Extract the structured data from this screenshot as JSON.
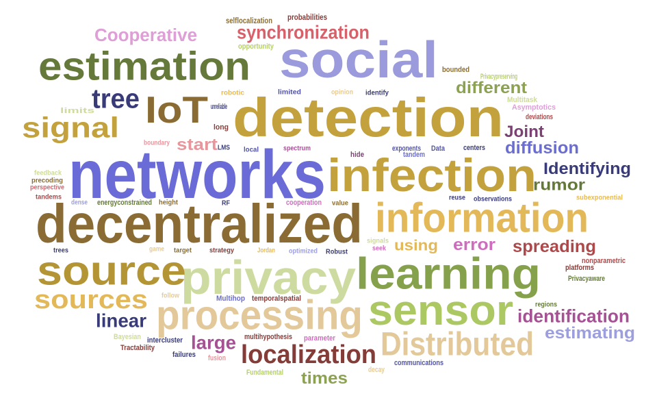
{
  "words": [
    {
      "text": "networks",
      "color": "#6a6bd6"
    },
    {
      "text": "detection",
      "color": "#c3a13c"
    },
    {
      "text": "decentralized",
      "color": "#8a6b33"
    },
    {
      "text": "privacy",
      "color": "#cddba0"
    },
    {
      "text": "social",
      "color": "#9a9adc"
    },
    {
      "text": "estimation",
      "color": "#657a3a"
    },
    {
      "text": "learning",
      "color": "#85a14c"
    },
    {
      "text": "source",
      "color": "#b39536"
    },
    {
      "text": "processing",
      "color": "#e3c89a"
    },
    {
      "text": "infection",
      "color": "#c3a13c"
    },
    {
      "text": "information",
      "color": "#e3b858"
    },
    {
      "text": "sensor",
      "color": "#acc863"
    },
    {
      "text": "IoT",
      "color": "#8a6b33"
    },
    {
      "text": "signal",
      "color": "#c3a13c"
    },
    {
      "text": "Distributed",
      "color": "#e3c89a"
    },
    {
      "text": "localization",
      "color": "#843c39"
    },
    {
      "text": "sources",
      "color": "#e3b858"
    },
    {
      "text": "synchronization",
      "color": "#d6616b"
    },
    {
      "text": "Cooperative",
      "color": "#de9ed6"
    },
    {
      "text": "tree",
      "color": "#393b79"
    },
    {
      "text": "spreading",
      "color": "#ad494a"
    },
    {
      "text": "different",
      "color": "#8ca252"
    },
    {
      "text": "diffusion",
      "color": "#6b6ecf"
    },
    {
      "text": "Identifying",
      "color": "#393b79"
    },
    {
      "text": "identification",
      "color": "#a55194"
    },
    {
      "text": "estimating",
      "color": "#9c9ede"
    },
    {
      "text": "linear",
      "color": "#393b79"
    },
    {
      "text": "rumor",
      "color": "#637939"
    },
    {
      "text": "Joint",
      "color": "#7b4173"
    },
    {
      "text": "start",
      "color": "#e7969c"
    },
    {
      "text": "error",
      "color": "#ce6dbd"
    },
    {
      "text": "using",
      "color": "#e3b858"
    },
    {
      "text": "large",
      "color": "#a55194"
    },
    {
      "text": "times",
      "color": "#8ca252"
    },
    {
      "text": "selflocalization",
      "color": "#8c6d31"
    },
    {
      "text": "probabilities",
      "color": "#843c39"
    },
    {
      "text": "opportunity",
      "color": "#b5cf6b"
    },
    {
      "text": "bounded",
      "color": "#8c6d31"
    },
    {
      "text": "Privacypreserving",
      "color": "#b5cf6b"
    },
    {
      "text": "Multitask",
      "color": "#cedb9c"
    },
    {
      "text": "deviations",
      "color": "#ad494a"
    },
    {
      "text": "Asymptotics",
      "color": "#de9ed6"
    },
    {
      "text": "robotic",
      "color": "#e7ba52"
    },
    {
      "text": "limited",
      "color": "#5254a3"
    },
    {
      "text": "opinion",
      "color": "#e7cb94"
    },
    {
      "text": "identify",
      "color": "#393b79"
    },
    {
      "text": "limits",
      "color": "#cedb9c"
    },
    {
      "text": "unreliable",
      "color": "#393b79"
    },
    {
      "text": "long",
      "color": "#843c39"
    },
    {
      "text": "boundary",
      "color": "#e7969c"
    },
    {
      "text": "LMS",
      "color": "#393b79"
    },
    {
      "text": "local",
      "color": "#5254a3"
    },
    {
      "text": "spectrum",
      "color": "#a55194"
    },
    {
      "text": "hide",
      "color": "#7b4173"
    },
    {
      "text": "exponents",
      "color": "#5254a3"
    },
    {
      "text": "tandem",
      "color": "#6b6ecf"
    },
    {
      "text": "Data",
      "color": "#5254a3"
    },
    {
      "text": "centers",
      "color": "#393b79"
    },
    {
      "text": "feedback",
      "color": "#cedb9c"
    },
    {
      "text": "precoding",
      "color": "#8c6d31"
    },
    {
      "text": "perspective",
      "color": "#d6616b"
    },
    {
      "text": "tandems",
      "color": "#ad494a"
    },
    {
      "text": "dense",
      "color": "#9c9ede"
    },
    {
      "text": "energyconstrained",
      "color": "#637939"
    },
    {
      "text": "height",
      "color": "#8c6d31"
    },
    {
      "text": "RF",
      "color": "#393b79"
    },
    {
      "text": "cooperation",
      "color": "#ce6dbd"
    },
    {
      "text": "value",
      "color": "#8c6d31"
    },
    {
      "text": "reuse",
      "color": "#393b79"
    },
    {
      "text": "observations",
      "color": "#393b79"
    },
    {
      "text": "subexponential",
      "color": "#e7ba52"
    },
    {
      "text": "trees",
      "color": "#393b79"
    },
    {
      "text": "game",
      "color": "#e7cb94"
    },
    {
      "text": "target",
      "color": "#8c6d31"
    },
    {
      "text": "strategy",
      "color": "#843c39"
    },
    {
      "text": "Jordan",
      "color": "#e7ba52"
    },
    {
      "text": "optimized",
      "color": "#9c9ede"
    },
    {
      "text": "Robust",
      "color": "#393b79"
    },
    {
      "text": "signals",
      "color": "#cedb9c"
    },
    {
      "text": "seek",
      "color": "#ce6dbd"
    },
    {
      "text": "platforms",
      "color": "#843c39"
    },
    {
      "text": "nonparametric",
      "color": "#ad494a"
    },
    {
      "text": "Privacyaware",
      "color": "#637939"
    },
    {
      "text": "follow",
      "color": "#e7cb94"
    },
    {
      "text": "Multihop",
      "color": "#6b6ecf"
    },
    {
      "text": "temporalspatial",
      "color": "#843c39"
    },
    {
      "text": "regions",
      "color": "#637939"
    },
    {
      "text": "Bayesian",
      "color": "#cedb9c"
    },
    {
      "text": "intercluster",
      "color": "#393b79"
    },
    {
      "text": "multihypothesis",
      "color": "#843c39"
    },
    {
      "text": "parameter",
      "color": "#ce6dbd"
    },
    {
      "text": "Tractability",
      "color": "#843c39"
    },
    {
      "text": "failures",
      "color": "#393b79"
    },
    {
      "text": "fusion",
      "color": "#e7969c"
    },
    {
      "text": "communications",
      "color": "#5254a3"
    },
    {
      "text": "decay",
      "color": "#e7cb94"
    },
    {
      "text": "Fundamental",
      "color": "#b5cf6b"
    }
  ]
}
